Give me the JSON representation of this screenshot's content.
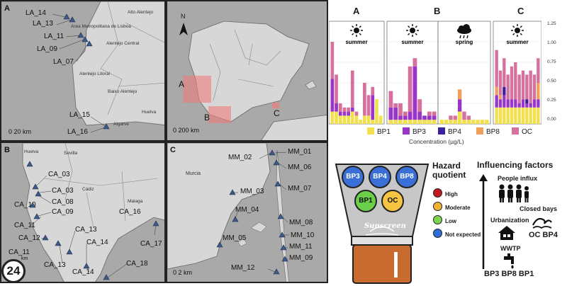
{
  "maps": {
    "A": {
      "panel_label": "A",
      "regions": [
        "Alto Alentejo",
        "Area Metropolitana de Lisboa",
        "Alentejo Central",
        "Alentejo Litoral",
        "Baixo Alentejo",
        "Algarve",
        "Huelva"
      ],
      "sites": [
        "LA_14",
        "LA_13",
        "LA_11",
        "LA_09",
        "LA_07",
        "LA_15",
        "LA_16"
      ],
      "scale": "0 20 km"
    },
    "overview": {
      "north": "N",
      "labels": [
        "A",
        "B",
        "C"
      ],
      "scale": "0 200 km"
    },
    "B": {
      "panel_label": "B",
      "regions": [
        "Huelva",
        "Sevilla",
        "Cádiz",
        "Malaga"
      ],
      "sites": [
        "CA_03",
        "CA_03",
        "CA_10",
        "CA_08",
        "CA_09",
        "CA_11",
        "CA_12",
        "CA_13",
        "CA_16",
        "CA_11",
        "CA_14",
        "CA_17",
        "CA_13",
        "CA_14",
        "CA_18"
      ],
      "scale": "km"
    },
    "C": {
      "panel_label": "C",
      "regions": [
        "Murcia"
      ],
      "sites": [
        "MM_02",
        "MM_01",
        "MM_06",
        "MM_03",
        "MM_07",
        "MM_04",
        "MM_08",
        "MM_05",
        "MM_10",
        "MM_11",
        "MM_09",
        "MM_12"
      ],
      "scale": "0 2 km"
    }
  },
  "chart_data": {
    "type": "bar",
    "stacked": true,
    "panels": [
      {
        "label": "A",
        "season": "summer",
        "weather": "sun-icon"
      },
      {
        "label": "B",
        "season": "summer",
        "weather": "sun-icon",
        "season2": "spring",
        "weather2": "rain-cloud-icon"
      },
      {
        "label": "C",
        "season": "summer",
        "weather": "sun-icon"
      }
    ],
    "xlabel": "Concentration (µg/L)",
    "ylim": [
      0,
      1.25
    ],
    "yticks": [
      "0.00",
      "0.25",
      "0.50",
      "0.75",
      "1.00",
      "1.25"
    ],
    "series": [
      {
        "name": "BP1",
        "color": "#f2e14c"
      },
      {
        "name": "BP3",
        "color": "#9a35c9"
      },
      {
        "name": "BP4",
        "color": "#3b1f9c"
      },
      {
        "name": "BP8",
        "color": "#f0a05a"
      },
      {
        "name": "OC",
        "color": "#d6709c"
      }
    ],
    "groups": {
      "A": [
        [
          0.15,
          0.4,
          0,
          0,
          0.45
        ],
        [
          0.15,
          0.1,
          0,
          0,
          0.35
        ],
        [
          0.1,
          0.05,
          0,
          0,
          0.1
        ],
        [
          0.1,
          0.05,
          0,
          0,
          0.05
        ],
        [
          0.1,
          0.05,
          0,
          0,
          0.05
        ],
        [
          0.15,
          0.05,
          0,
          0,
          0.45
        ],
        [
          0.1,
          0,
          0,
          0,
          0.05
        ],
        [
          0.05,
          0,
          0,
          0,
          0
        ],
        [
          0.1,
          0,
          0,
          0,
          0.4
        ],
        [
          0.1,
          0,
          0,
          0,
          0.25
        ],
        [
          0.05,
          0.3,
          0,
          0,
          0.1
        ],
        [
          0.3,
          0,
          0,
          0,
          0
        ],
        [
          0.1,
          0,
          0,
          0,
          0
        ]
      ],
      "B1": [
        [
          0.05,
          0.15,
          0,
          0,
          0.2
        ],
        [
          0.05,
          0.15,
          0,
          0,
          0.05
        ],
        [
          0.05,
          0.05,
          0,
          0,
          0.15
        ],
        [
          0.05,
          0.05,
          0,
          0,
          0.05
        ],
        [
          0.05,
          0.1,
          0,
          0,
          0.55
        ],
        [
          0.05,
          0.65,
          0,
          0,
          0.1
        ],
        [
          0.05,
          0.1,
          0,
          0,
          0.15
        ],
        [
          0.05,
          0.05,
          0,
          0,
          0
        ],
        [
          0.05,
          0.05,
          0,
          0,
          0.05
        ],
        [
          0.05,
          0.05,
          0,
          0,
          0.05
        ]
      ],
      "B2": [
        [
          0.05,
          0,
          0,
          0,
          0
        ],
        [
          0.05,
          0,
          0,
          0,
          0
        ],
        [
          0.05,
          0,
          0,
          0,
          0.05
        ],
        [
          0.05,
          0,
          0,
          0,
          0.05
        ],
        [
          0.15,
          0.15,
          0,
          0.12,
          0
        ],
        [
          0.05,
          0,
          0,
          0,
          0.1
        ],
        [
          0.05,
          0,
          0,
          0,
          0.05
        ],
        [
          0.05,
          0,
          0,
          0,
          0
        ],
        [
          0.05,
          0,
          0,
          0,
          0
        ],
        [
          0.05,
          0,
          0,
          0,
          0
        ],
        [
          0.05,
          0,
          0,
          0,
          0
        ]
      ],
      "C": [
        [
          0.2,
          0.15,
          0,
          0.1,
          0.45
        ],
        [
          0.2,
          0.1,
          0,
          0.05,
          0.3
        ],
        [
          0.2,
          0.15,
          0.1,
          0,
          0.35
        ],
        [
          0.2,
          0.1,
          0,
          0,
          0.3
        ],
        [
          0.2,
          0.1,
          0,
          0,
          0.4
        ],
        [
          0.2,
          0.1,
          0,
          0,
          0.45
        ],
        [
          0.2,
          0.05,
          0,
          0,
          0.35
        ],
        [
          0.2,
          0.1,
          0,
          0,
          0.35
        ],
        [
          0.2,
          0.05,
          0.05,
          0,
          0.3
        ],
        [
          0.2,
          0.05,
          0,
          0,
          0.4
        ],
        [
          0.2,
          0.1,
          0,
          0,
          0.3
        ],
        [
          0.2,
          0.1,
          0,
          0.2,
          0.3
        ]
      ]
    }
  },
  "sunscreen": {
    "bottle_label": "Sunscreen",
    "circles": [
      {
        "label": "BP3",
        "color": "#3a6fd8"
      },
      {
        "label": "BP4",
        "color": "#3a6fd8"
      },
      {
        "label": "BP8",
        "color": "#3a6fd8"
      },
      {
        "label": "BP1",
        "color": "#6ccf4a"
      },
      {
        "label": "OC",
        "color": "#f5c542"
      }
    ]
  },
  "hazard": {
    "title_line1": "Hazard",
    "title_line2": "quotient",
    "items": [
      {
        "label": "High",
        "color": "#c0181f"
      },
      {
        "label": "Moderate",
        "color": "#f1b230"
      },
      {
        "label": "Low",
        "color": "#7ed34d"
      },
      {
        "label": "Not expected",
        "color": "#2b6fd6"
      }
    ]
  },
  "influencing": {
    "title": "Influencing factors",
    "people": "People influx",
    "urbanization": "Urbanization",
    "closed_bays": "Closed bays",
    "oc_bp4": "OC BP4",
    "wwtp": "WWTP",
    "bottom": "BP3 BP8 BP1"
  },
  "logo": "24"
}
